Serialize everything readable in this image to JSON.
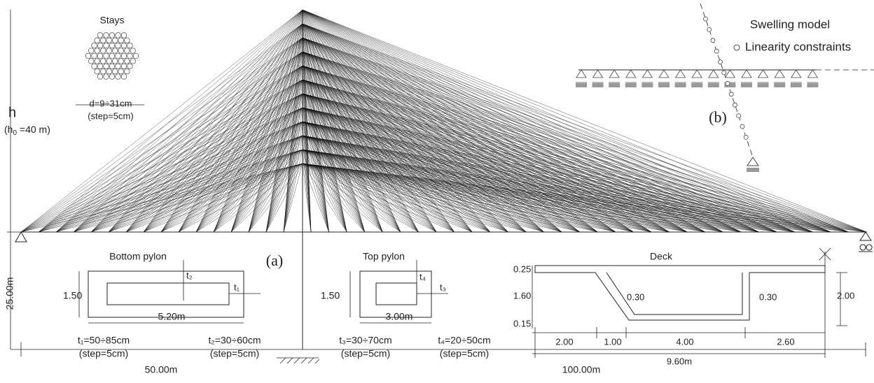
{
  "stays": {
    "title": "Stays",
    "diameter": "d=9÷31cm",
    "step": "(step=5cm)"
  },
  "height": {
    "symbol": "h",
    "prefix": "(h",
    "subscript": "0",
    "suffix": " =40 m)"
  },
  "swelling": {
    "title": "Swelling model",
    "legend": "Linearity constraints",
    "label": "(b)"
  },
  "label_a": "(a)",
  "bottom_pylon": {
    "title": "Bottom pylon",
    "t2": "t₂",
    "t1": "t₁",
    "height": "1.50",
    "width": "5.20m",
    "t1_range": "t₁=50÷85cm",
    "t1_step": "(step=5cm)",
    "t2_range": "t₂=30÷60cm",
    "t2_step": "(step=5cm)"
  },
  "top_pylon": {
    "title": "Top pylon",
    "t4": "t₄",
    "t3": "t₃",
    "height": "1.50",
    "width": "3.00m",
    "t3_range": "t₃=30÷70cm",
    "t3_step": "(step=5cm)",
    "t4_range": "t₄=20÷50cm",
    "t4_step": "(step=5cm)"
  },
  "deck": {
    "title": "Deck",
    "top_flange": "0.25",
    "web_height": "1.60",
    "bottom_flange": "0.15",
    "left_web": "0.30",
    "right_web": "0.30",
    "depth": "2.00",
    "left_cantilever": "2.00",
    "slope_width": "1.00",
    "bottom_width": "4.00",
    "right_cantilever": "2.60",
    "total_width": "9.60m"
  },
  "dimensions": {
    "pylon_height": "25.00m",
    "left_span": "50.00m",
    "right_span": "100.00m"
  }
}
